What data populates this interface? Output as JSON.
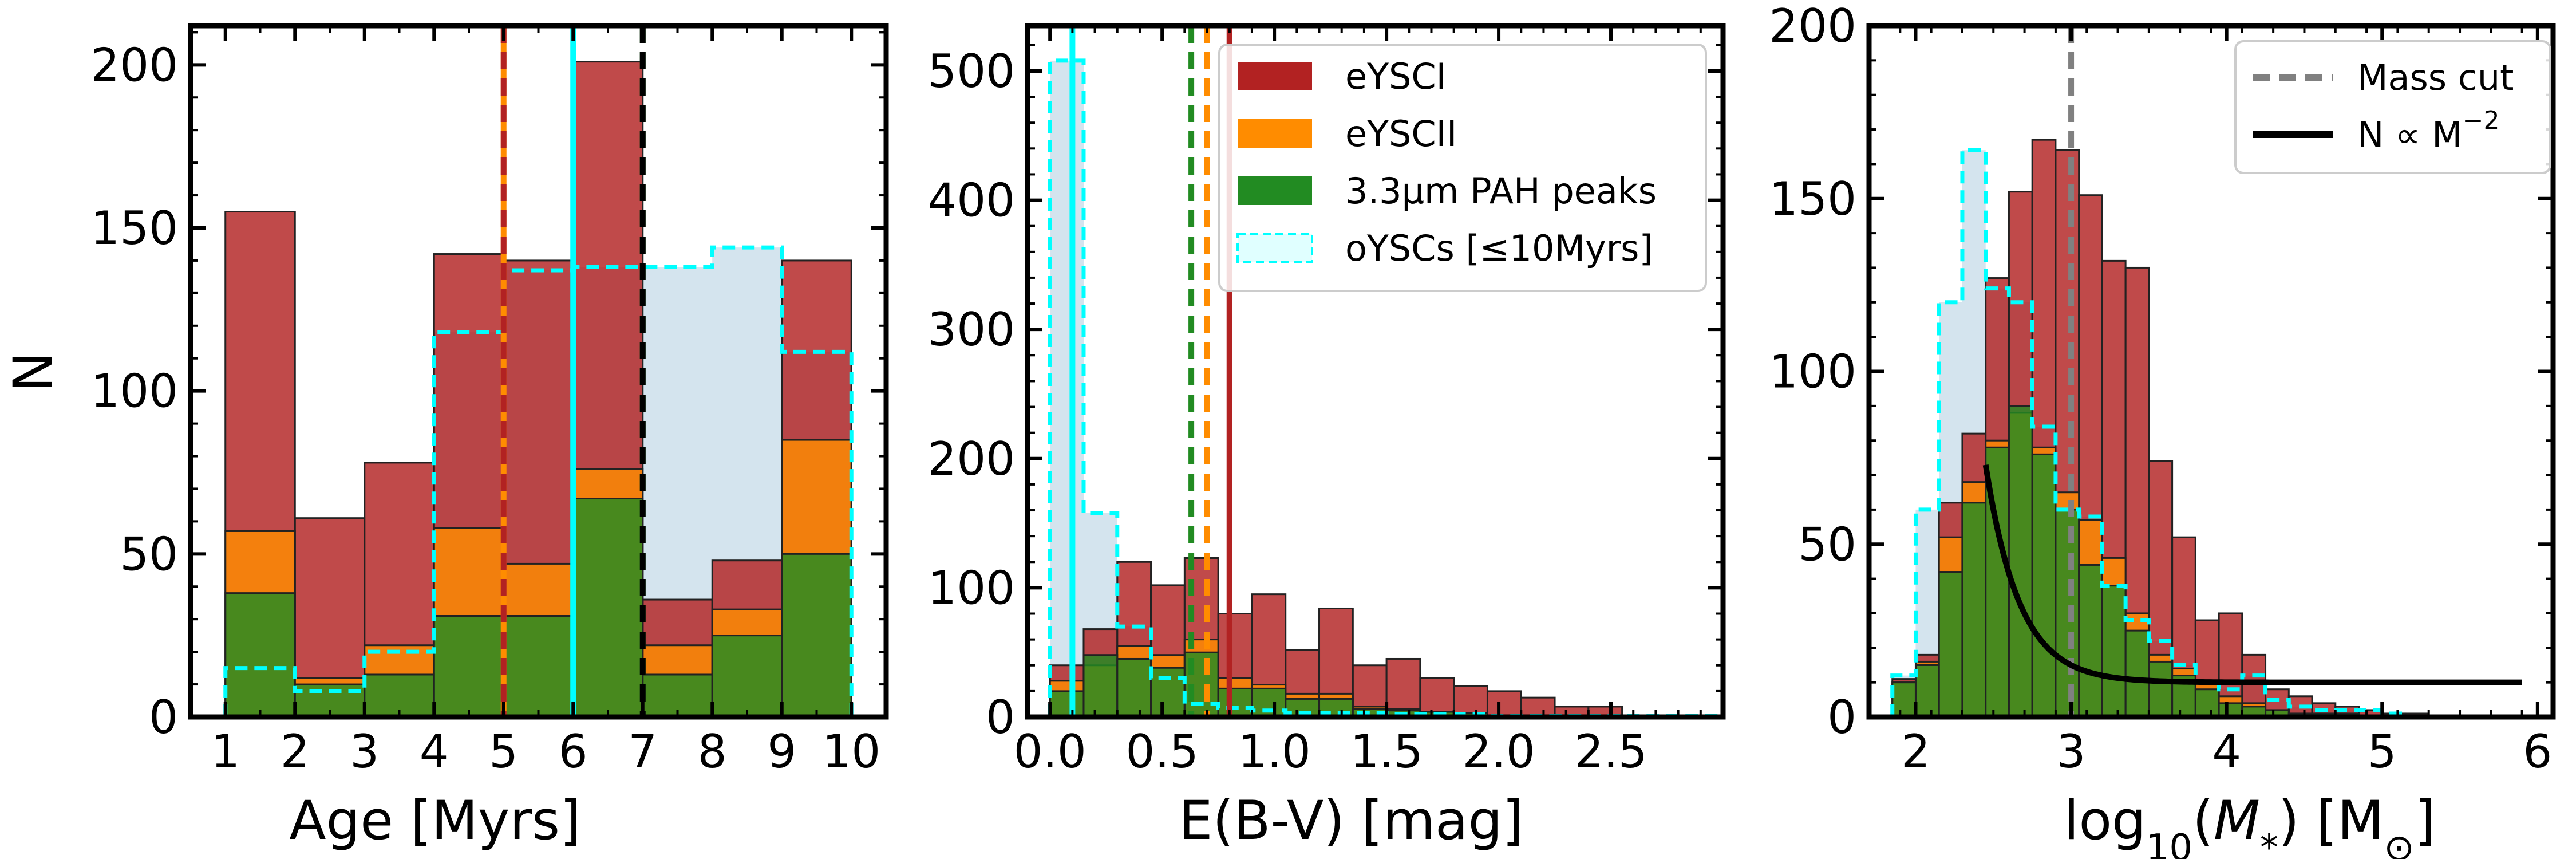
{
  "colors": {
    "eyscI": "#b22222",
    "eyscII": "#ff8c00",
    "pah": "#228b22",
    "oysc_fill": "#b0cde0",
    "oysc_edge": "#00ffff",
    "mass_cut": "#808080",
    "powerlaw": "#000000"
  },
  "chart_data": [
    {
      "type": "bar",
      "id": "age",
      "xlabel": "Age [Myrs]",
      "ylabel": "N",
      "xlim": [
        0.5,
        10.5
      ],
      "ylim": [
        0,
        212
      ],
      "xticks": [
        1,
        2,
        3,
        4,
        5,
        6,
        7,
        8,
        9,
        10
      ],
      "yticks": [
        0,
        50,
        100,
        150,
        200
      ],
      "bin_edges": [
        1,
        2,
        3,
        4,
        5,
        6,
        7,
        8,
        9,
        10
      ],
      "series": [
        {
          "name": "oYSCs [≤10Myrs]",
          "style": "step",
          "values": [
            15,
            8,
            20,
            118,
            137,
            138,
            138,
            144,
            112
          ]
        },
        {
          "name": "eYSCI",
          "values": [
            155,
            61,
            78,
            142,
            140,
            201,
            36,
            48,
            140
          ]
        },
        {
          "name": "eYSCII",
          "values": [
            57,
            12,
            22,
            58,
            47,
            76,
            22,
            33,
            85
          ]
        },
        {
          "name": "3.3μm PAH peaks",
          "values": [
            38,
            10,
            13,
            31,
            31,
            67,
            13,
            25,
            50
          ]
        }
      ],
      "vlines": [
        {
          "x": 5.0,
          "color": "#ff8c00",
          "style": "solid"
        },
        {
          "x": 5.0,
          "color": "#b22222",
          "style": "dashed"
        },
        {
          "x": 6.0,
          "color": "#00ffff",
          "style": "solid"
        },
        {
          "x": 7.0,
          "color": "#228b22",
          "style": "dashed"
        },
        {
          "x": 7.0,
          "color": "#000000",
          "style": "dashed"
        }
      ]
    },
    {
      "type": "bar",
      "id": "ebv",
      "xlabel": "E(B-V) [mag]",
      "ylabel": "",
      "xlim": [
        -0.1,
        3.0
      ],
      "ylim": [
        0,
        535
      ],
      "xticks": [
        0.0,
        0.5,
        1.0,
        1.5,
        2.0,
        2.5
      ],
      "xtick_labels": [
        "0.0",
        "0.5",
        "1.0",
        "1.5",
        "2.0",
        "2.5"
      ],
      "yticks": [
        0,
        100,
        200,
        300,
        400,
        500
      ],
      "bin_edges": [
        0.0,
        0.15,
        0.3,
        0.45,
        0.6,
        0.75,
        0.9,
        1.05,
        1.2,
        1.35,
        1.5,
        1.65,
        1.8,
        1.95,
        2.1,
        2.25,
        2.4,
        2.55
      ],
      "step_edges": [
        0.0,
        0.15,
        0.3,
        0.45,
        0.6,
        0.75,
        0.9,
        1.05,
        1.2,
        1.35,
        1.5,
        1.65,
        1.8,
        1.95,
        2.1,
        2.25,
        2.4,
        2.55,
        2.7,
        2.85,
        3.0
      ],
      "series": [
        {
          "name": "oYSCs [≤10Myrs]",
          "style": "step",
          "values": [
            508,
            158,
            70,
            30,
            10,
            7,
            5,
            3,
            3,
            3,
            2,
            2,
            2,
            1,
            1,
            1,
            1,
            1,
            1,
            1
          ]
        },
        {
          "name": "eYSCI",
          "values": [
            40,
            68,
            120,
            102,
            123,
            80,
            95,
            52,
            84,
            40,
            45,
            30,
            24,
            20,
            15,
            8,
            8
          ]
        },
        {
          "name": "eYSCII",
          "values": [
            28,
            40,
            55,
            48,
            60,
            30,
            25,
            18,
            18,
            8,
            6,
            4,
            3,
            1,
            1,
            0,
            0
          ]
        },
        {
          "name": "3.3μm PAH peaks",
          "values": [
            20,
            48,
            45,
            38,
            50,
            22,
            22,
            14,
            14,
            6,
            5,
            4,
            3,
            1,
            1,
            0,
            0
          ]
        }
      ],
      "vlines": [
        {
          "x": 0.1,
          "color": "#00ffff",
          "style": "solid"
        },
        {
          "x": 0.63,
          "color": "#228b22",
          "style": "dashed"
        },
        {
          "x": 0.7,
          "color": "#ff8c00",
          "style": "dashed"
        },
        {
          "x": 0.8,
          "color": "#b22222",
          "style": "solid"
        }
      ],
      "legend": {
        "position": "top-right",
        "entries": [
          {
            "label": "eYSCI",
            "color": "#b22222"
          },
          {
            "label": "eYSCII",
            "color": "#ff8c00"
          },
          {
            "label": "3.3μm PAH peaks",
            "color": "#228b22"
          },
          {
            "label": "oYSCs [≤10Myrs]",
            "color": "#e0ffff"
          }
        ]
      }
    },
    {
      "type": "bar",
      "id": "mass",
      "xlabel": "log10(M*) [M⊙]",
      "xlabel_parts": {
        "log": "log",
        "sub": "10",
        "mid": "(",
        "m": "M",
        "star": "*",
        "tail": ") [M",
        "sun": "⊙",
        "close": "]"
      },
      "ylabel": "",
      "xlim": [
        1.7,
        6.1
      ],
      "ylim": [
        0,
        200
      ],
      "xticks": [
        2,
        3,
        4,
        5,
        6
      ],
      "yticks": [
        0,
        50,
        100,
        150,
        200
      ],
      "bin_edges": [
        1.85,
        2.0,
        2.15,
        2.3,
        2.45,
        2.6,
        2.75,
        2.9,
        3.05,
        3.2,
        3.35,
        3.5,
        3.65,
        3.8,
        3.95,
        4.1,
        4.25,
        4.4,
        4.55,
        4.7,
        4.85,
        5.0,
        5.15,
        5.3
      ],
      "series": [
        {
          "name": "oYSCs [≤10Myrs]",
          "style": "step",
          "values": [
            12,
            60,
            120,
            164,
            124,
            120,
            84,
            60,
            58,
            38,
            28,
            22,
            15,
            10,
            8,
            12,
            5,
            3,
            2,
            2,
            2,
            1,
            0
          ]
        },
        {
          "name": "eYSCI",
          "values": [
            11,
            18,
            62,
            82,
            127,
            152,
            167,
            164,
            151,
            132,
            130,
            74,
            52,
            28,
            30,
            18,
            8,
            6,
            4,
            3,
            2,
            1,
            1
          ]
        },
        {
          "name": "eYSCII",
          "values": [
            10,
            16,
            52,
            68,
            80,
            88,
            78,
            65,
            57,
            46,
            30,
            18,
            14,
            10,
            6,
            4,
            2,
            1,
            1,
            1,
            0,
            0,
            0
          ]
        },
        {
          "name": "3.3μm PAH peaks",
          "values": [
            10,
            15,
            42,
            62,
            78,
            90,
            76,
            60,
            44,
            38,
            25,
            16,
            12,
            8,
            4,
            3,
            2,
            1,
            1,
            1,
            0,
            0,
            0
          ]
        }
      ],
      "vlines": [
        {
          "x": 3.0,
          "color": "#808080",
          "style": "dashed"
        }
      ],
      "powerlaw": {
        "a": 5000000,
        "exponent": -2,
        "offset": 10,
        "x_start": 2.45,
        "x_end": 5.9
      },
      "legend": {
        "position": "top-right",
        "entries": [
          {
            "label": "Mass cut",
            "color": "#808080",
            "style": "dashed"
          },
          {
            "label": "N ∝ M",
            "sup": "−2",
            "color": "#000000",
            "style": "solid"
          }
        ]
      }
    }
  ]
}
